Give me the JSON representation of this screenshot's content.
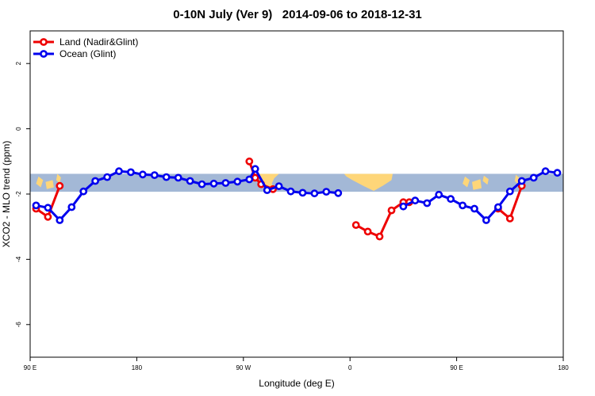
{
  "chart_data": {
    "type": "line",
    "title": "0-10N July (Ver 9)   2014-09-06 to 2018-12-31",
    "xlabel": "Longitude (deg E)",
    "ylabel": "XCO2 - MLO trend (ppm)",
    "xlim": [
      90,
      540
    ],
    "ylim": [
      -7,
      3
    ],
    "x_ticks": [
      {
        "value": 90,
        "label": "90 E"
      },
      {
        "value": 180,
        "label": "180"
      },
      {
        "value": 270,
        "label": "90 W"
      },
      {
        "value": 360,
        "label": "0"
      },
      {
        "value": 450,
        "label": "90 E"
      },
      {
        "value": 540,
        "label": "180"
      }
    ],
    "y_ticks": [
      {
        "value": 2,
        "label": "2"
      },
      {
        "value": 0,
        "label": "0"
      },
      {
        "value": -2,
        "label": "-2"
      },
      {
        "value": -4,
        "label": "-4"
      },
      {
        "value": -6,
        "label": "-6"
      }
    ],
    "map_strip": {
      "y_top": -1.38,
      "y_bottom": -1.93,
      "ocean_color": "#a3b8d6",
      "land_color": "#fed679"
    },
    "series": [
      {
        "name": "Land (Nadir&Glint)",
        "color": "#ee0000",
        "segments": [
          [
            [
              95,
              -2.45
            ],
            [
              105,
              -2.7
            ],
            [
              115,
              -1.75
            ]
          ],
          [
            [
              275,
              -1.0
            ],
            [
              280,
              -1.5
            ],
            [
              285,
              -1.7
            ],
            [
              295,
              -1.85
            ]
          ],
          [
            [
              365,
              -2.95
            ],
            [
              375,
              -3.15
            ],
            [
              385,
              -3.3
            ],
            [
              395,
              -2.5
            ],
            [
              405,
              -2.25
            ],
            [
              410,
              -2.25
            ]
          ],
          [
            [
              485,
              -2.45
            ],
            [
              495,
              -2.75
            ],
            [
              505,
              -1.75
            ]
          ]
        ]
      },
      {
        "name": "Ocean (Glint)",
        "color": "#0000ee",
        "segments": [
          [
            [
              95,
              -2.35
            ],
            [
              105,
              -2.42
            ],
            [
              115,
              -2.8
            ],
            [
              125,
              -2.4
            ],
            [
              135,
              -1.92
            ],
            [
              145,
              -1.6
            ],
            [
              155,
              -1.48
            ],
            [
              165,
              -1.3
            ],
            [
              175,
              -1.33
            ],
            [
              185,
              -1.4
            ],
            [
              195,
              -1.42
            ],
            [
              205,
              -1.48
            ],
            [
              215,
              -1.5
            ],
            [
              225,
              -1.6
            ],
            [
              235,
              -1.7
            ],
            [
              245,
              -1.68
            ],
            [
              255,
              -1.66
            ],
            [
              265,
              -1.62
            ],
            [
              275,
              -1.55
            ],
            [
              280,
              -1.23
            ],
            [
              290,
              -1.88
            ],
            [
              300,
              -1.76
            ],
            [
              310,
              -1.92
            ],
            [
              320,
              -1.96
            ],
            [
              330,
              -1.98
            ],
            [
              340,
              -1.93
            ],
            [
              350,
              -1.97
            ]
          ],
          [
            [
              405,
              -2.38
            ],
            [
              415,
              -2.2
            ],
            [
              425,
              -2.28
            ],
            [
              435,
              -2.02
            ],
            [
              445,
              -2.15
            ],
            [
              455,
              -2.35
            ],
            [
              465,
              -2.45
            ],
            [
              475,
              -2.8
            ],
            [
              485,
              -2.4
            ],
            [
              495,
              -1.92
            ],
            [
              505,
              -1.6
            ],
            [
              515,
              -1.5
            ],
            [
              525,
              -1.3
            ],
            [
              535,
              -1.35
            ]
          ]
        ]
      }
    ]
  }
}
